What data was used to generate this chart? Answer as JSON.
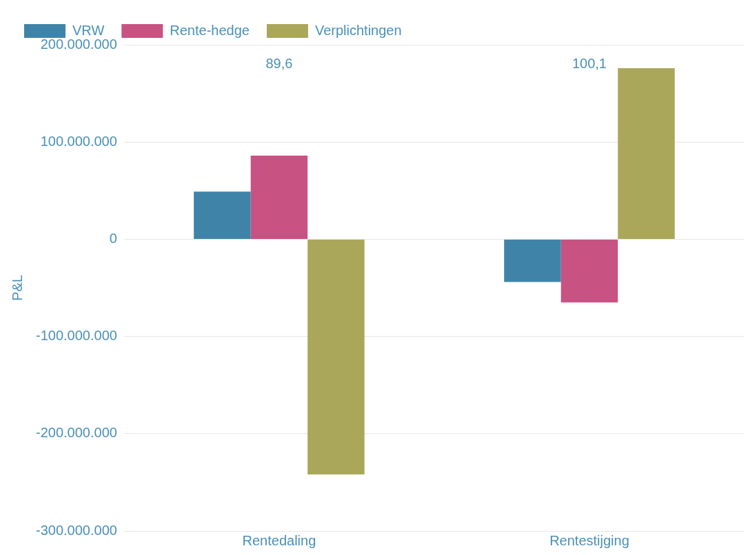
{
  "chart_data": {
    "type": "bar",
    "ylabel": "P&L",
    "categories": [
      "Rentedaling",
      "Rentestijging"
    ],
    "series": [
      {
        "name": "VRW",
        "color": "#3f84a8",
        "values": [
          49000000,
          -44000000
        ]
      },
      {
        "name": "Rente-hedge",
        "color": "#c85282",
        "values": [
          86000000,
          -65000000
        ]
      },
      {
        "name": "Verplichtingen",
        "color": "#aaa75a",
        "values": [
          -242000000,
          176000000
        ]
      }
    ],
    "ylim": [
      -300000000,
      200000000
    ],
    "yticks": [
      {
        "value": -300000000,
        "label": "-300.000.000"
      },
      {
        "value": -200000000,
        "label": "-200.000.000"
      },
      {
        "value": -100000000,
        "label": "-100.000.000"
      },
      0,
      {
        "value": 100000000,
        "label": "100.000.000"
      },
      {
        "value": 200000000,
        "label": "200.000.000"
      }
    ],
    "annotations": [
      "89,6",
      "100,1"
    ],
    "grid": "y",
    "legend": "top left"
  }
}
